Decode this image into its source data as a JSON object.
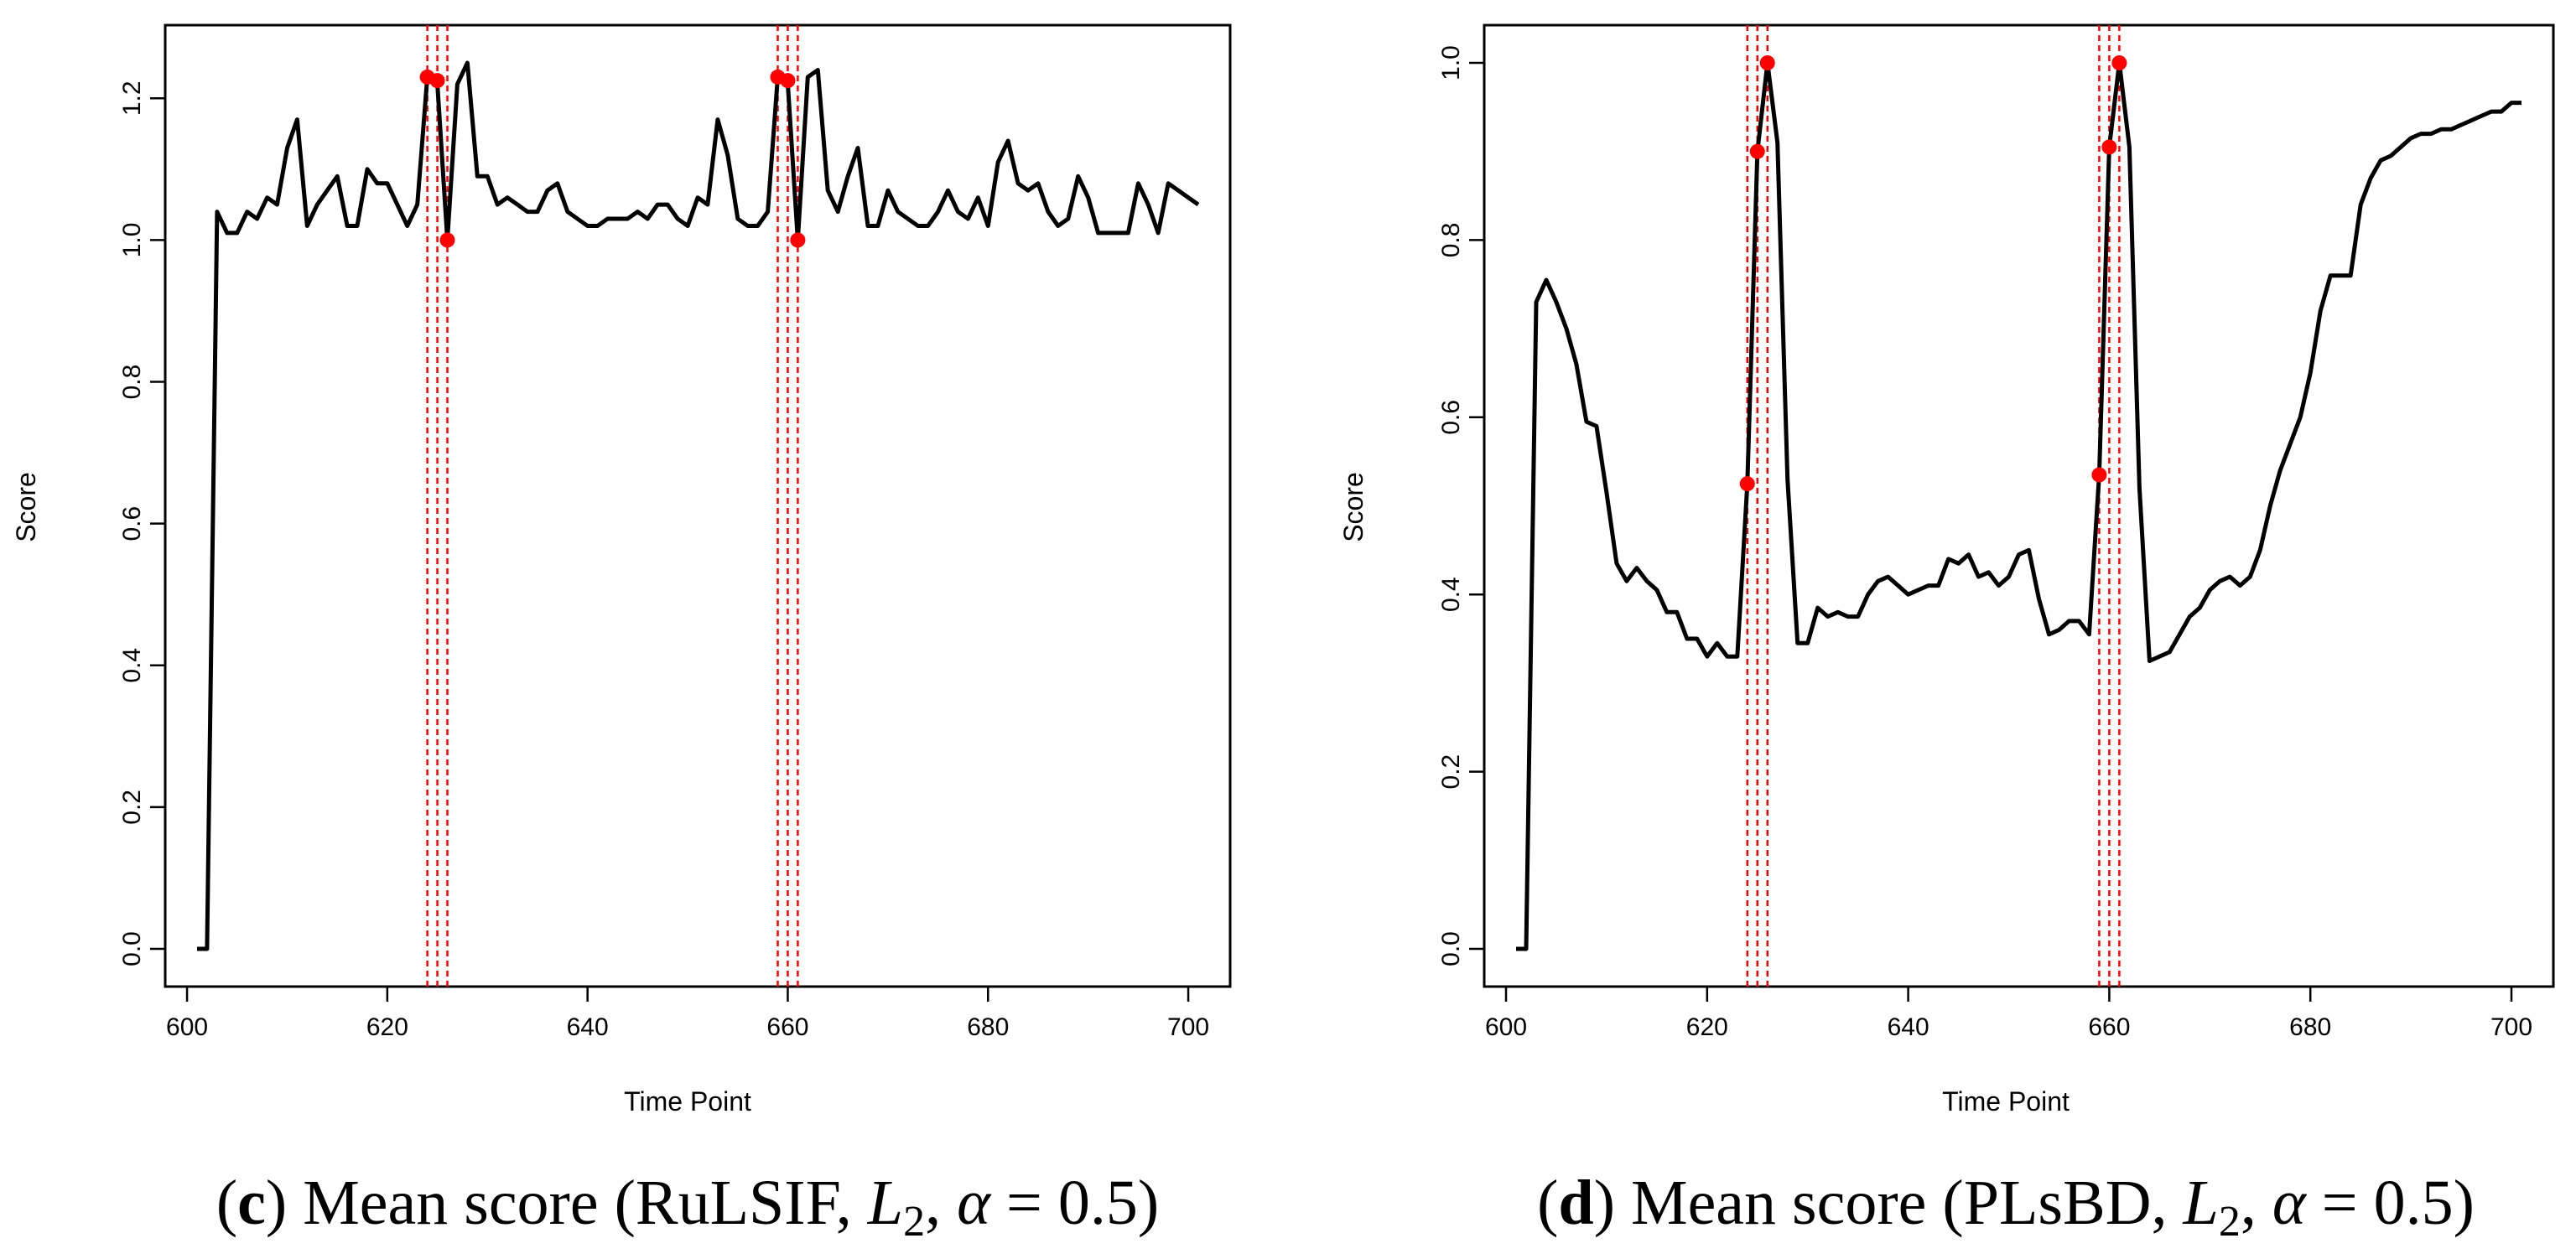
{
  "chart_data": [
    {
      "type": "line",
      "title": "",
      "xlabel": "Time Point",
      "ylabel": "Score",
      "xlim": [
        600,
        701
      ],
      "ylim": [
        0,
        1.25
      ],
      "xticks": [
        600,
        620,
        640,
        660,
        680,
        700
      ],
      "xtick_labels": [
        "600",
        "620",
        "640",
        "660",
        "680",
        "700"
      ],
      "yticks": [
        0.0,
        0.2,
        0.4,
        0.6,
        0.8,
        1.0,
        1.2
      ],
      "ytick_labels": [
        "0.0",
        "0.2",
        "0.4",
        "0.6",
        "0.8",
        "1.0",
        "1.2"
      ],
      "caption": {
        "letter": "c",
        "text": "Mean score (RuLSIF,",
        "math": "L",
        "sub": "2",
        "alpha": "α",
        "eq": " = 0.5)"
      },
      "x": [
        601,
        602,
        603,
        604,
        605,
        606,
        607,
        608,
        609,
        610,
        611,
        612,
        613,
        614,
        615,
        616,
        617,
        618,
        619,
        620,
        621,
        622,
        623,
        624,
        625,
        626,
        627,
        628,
        629,
        630,
        631,
        632,
        633,
        634,
        635,
        636,
        637,
        638,
        639,
        640,
        641,
        642,
        643,
        644,
        645,
        646,
        647,
        648,
        649,
        650,
        651,
        652,
        653,
        654,
        655,
        656,
        657,
        658,
        659,
        660,
        661,
        662,
        663,
        664,
        665,
        666,
        667,
        668,
        669,
        670,
        671,
        672,
        673,
        674,
        675,
        676,
        677,
        678,
        679,
        680,
        681,
        682,
        683,
        684,
        685,
        686,
        687,
        688,
        689,
        690,
        691,
        692,
        693,
        694,
        695,
        696,
        697,
        698,
        699,
        700,
        701
      ],
      "series": [
        {
          "name": "mean score",
          "color": "#000000",
          "values": [
            0.0,
            0.0,
            1.04,
            1.01,
            1.01,
            1.04,
            1.03,
            1.06,
            1.05,
            1.13,
            1.17,
            1.02,
            1.05,
            1.07,
            1.09,
            1.02,
            1.02,
            1.1,
            1.08,
            1.08,
            1.05,
            1.02,
            1.05,
            1.23,
            1.22,
            1.0,
            1.22,
            1.25,
            1.09,
            1.09,
            1.05,
            1.06,
            1.05,
            1.04,
            1.04,
            1.07,
            1.08,
            1.04,
            1.03,
            1.02,
            1.02,
            1.03,
            1.03,
            1.03,
            1.04,
            1.03,
            1.05,
            1.05,
            1.03,
            1.02,
            1.06,
            1.05,
            1.17,
            1.12,
            1.03,
            1.02,
            1.02,
            1.04,
            1.23,
            1.22,
            1.0,
            1.23,
            1.24,
            1.07,
            1.04,
            1.09,
            1.13,
            1.02,
            1.02,
            1.07,
            1.04,
            1.03,
            1.02,
            1.02,
            1.04,
            1.07,
            1.04,
            1.03,
            1.06,
            1.02,
            1.11,
            1.14,
            1.08,
            1.07,
            1.08,
            1.04,
            1.02,
            1.03,
            1.09,
            1.06,
            1.01,
            1.01,
            1.01,
            1.01,
            1.08,
            1.05,
            1.01,
            1.08,
            1.07,
            1.06,
            1.05
          ]
        }
      ],
      "change_points": [
        624,
        625,
        626,
        659,
        660,
        661
      ],
      "markers": [
        {
          "x": 624,
          "y": 1.23
        },
        {
          "x": 625,
          "y": 1.225
        },
        {
          "x": 626,
          "y": 1.0
        },
        {
          "x": 659,
          "y": 1.23
        },
        {
          "x": 660,
          "y": 1.225
        },
        {
          "x": 661,
          "y": 1.0
        }
      ],
      "colors": {
        "line": "#000000",
        "marker": "#ff0000",
        "change_line": "#ff0000"
      }
    },
    {
      "type": "line",
      "title": "",
      "xlabel": "Time Point",
      "ylabel": "Score",
      "xlim": [
        600,
        701
      ],
      "ylim": [
        0,
        1.0
      ],
      "xticks": [
        600,
        620,
        640,
        660,
        680,
        700
      ],
      "xtick_labels": [
        "600",
        "620",
        "640",
        "660",
        "680",
        "700"
      ],
      "yticks": [
        0.0,
        0.2,
        0.4,
        0.6,
        0.8,
        1.0
      ],
      "ytick_labels": [
        "0.0",
        "0.2",
        "0.4",
        "0.6",
        "0.8",
        "1.0"
      ],
      "caption": {
        "letter": "d",
        "text": "Mean score (PLsBD,",
        "math": "L",
        "sub": "2",
        "alpha": "α",
        "eq": " = 0.5)"
      },
      "x": [
        601,
        602,
        603,
        604,
        605,
        606,
        607,
        608,
        609,
        610,
        611,
        612,
        613,
        614,
        615,
        616,
        617,
        618,
        619,
        620,
        621,
        622,
        623,
        624,
        625,
        626,
        627,
        628,
        629,
        630,
        631,
        632,
        633,
        634,
        635,
        636,
        637,
        638,
        639,
        640,
        641,
        642,
        643,
        644,
        645,
        646,
        647,
        648,
        649,
        650,
        651,
        652,
        653,
        654,
        655,
        656,
        657,
        658,
        659,
        660,
        661,
        662,
        663,
        664,
        665,
        666,
        667,
        668,
        669,
        670,
        671,
        672,
        673,
        674,
        675,
        676,
        677,
        678,
        679,
        680,
        681,
        682,
        683,
        684,
        685,
        686,
        687,
        688,
        689,
        690,
        691,
        692,
        693,
        694,
        695,
        696,
        697,
        698,
        699,
        700,
        701
      ],
      "series": [
        {
          "name": "mean score",
          "color": "#000000",
          "values": [
            0.0,
            0.0,
            0.73,
            0.755,
            0.73,
            0.7,
            0.66,
            0.595,
            0.59,
            0.515,
            0.435,
            0.415,
            0.43,
            0.415,
            0.405,
            0.38,
            0.38,
            0.35,
            0.35,
            0.33,
            0.345,
            0.33,
            0.33,
            0.525,
            0.9,
            1.0,
            0.91,
            0.53,
            0.345,
            0.345,
            0.385,
            0.375,
            0.38,
            0.375,
            0.375,
            0.4,
            0.415,
            0.42,
            0.41,
            0.4,
            0.405,
            0.41,
            0.41,
            0.44,
            0.435,
            0.445,
            0.42,
            0.425,
            0.41,
            0.42,
            0.445,
            0.45,
            0.395,
            0.355,
            0.36,
            0.37,
            0.37,
            0.355,
            0.535,
            0.905,
            1.0,
            0.905,
            0.52,
            0.325,
            0.33,
            0.335,
            0.355,
            0.375,
            0.385,
            0.405,
            0.415,
            0.42,
            0.41,
            0.42,
            0.45,
            0.5,
            0.54,
            0.57,
            0.6,
            0.65,
            0.72,
            0.76,
            0.76,
            0.76,
            0.84,
            0.87,
            0.89,
            0.895,
            0.905,
            0.915,
            0.92,
            0.92,
            0.925,
            0.925,
            0.93,
            0.935,
            0.94,
            0.945,
            0.945,
            0.955,
            0.955
          ]
        }
      ],
      "change_points": [
        624,
        625,
        626,
        659,
        660,
        661
      ],
      "markers": [
        {
          "x": 624,
          "y": 0.525
        },
        {
          "x": 625,
          "y": 0.9
        },
        {
          "x": 626,
          "y": 1.0
        },
        {
          "x": 659,
          "y": 0.535
        },
        {
          "x": 660,
          "y": 0.905
        },
        {
          "x": 661,
          "y": 1.0
        }
      ],
      "colors": {
        "line": "#000000",
        "marker": "#ff0000",
        "change_line": "#ff0000"
      }
    }
  ]
}
